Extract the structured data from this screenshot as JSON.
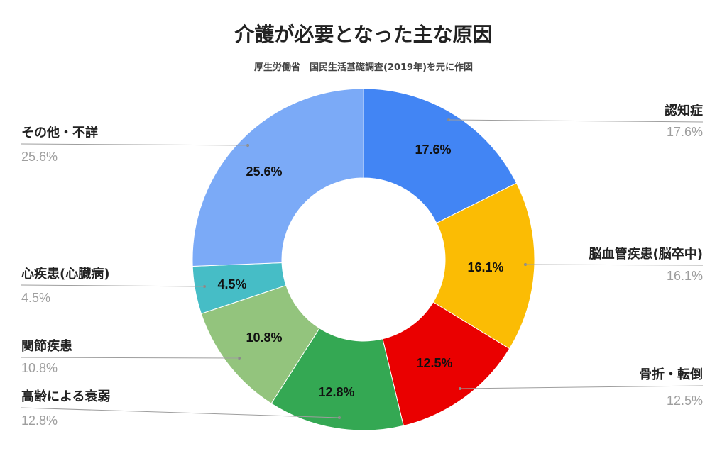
{
  "chart_data": {
    "type": "pie",
    "title": "介護が必要となった主な原因",
    "subtitle": "厚生労働省　国民生活基礎調査(2019年)を元に作図",
    "donut": true,
    "slices": [
      {
        "name": "認知症",
        "value": 17.6,
        "label": "17.6%",
        "color": "#4285f4",
        "text_color": "#111111"
      },
      {
        "name": "脳血管疾患(脳卒中)",
        "value": 16.1,
        "label": "16.1%",
        "color": "#fbbc04",
        "text_color": "#111111"
      },
      {
        "name": "骨折・転倒",
        "value": 12.5,
        "label": "12.5%",
        "color": "#ea0000",
        "text_color": "#111111"
      },
      {
        "name": "高齢による衰弱",
        "value": 12.8,
        "label": "12.8%",
        "color": "#34a853",
        "text_color": "#111111"
      },
      {
        "name": "関節疾患",
        "value": 10.8,
        "label": "10.8%",
        "color": "#93c47d",
        "text_color": "#111111"
      },
      {
        "name": "心疾患(心臓病)",
        "value": 4.5,
        "label": "4.5%",
        "color": "#46bdc6",
        "text_color": "#111111"
      },
      {
        "name": "その他・不詳",
        "value": 25.6,
        "label": "25.6%",
        "color": "#7baaf7",
        "text_color": "#111111"
      }
    ]
  }
}
